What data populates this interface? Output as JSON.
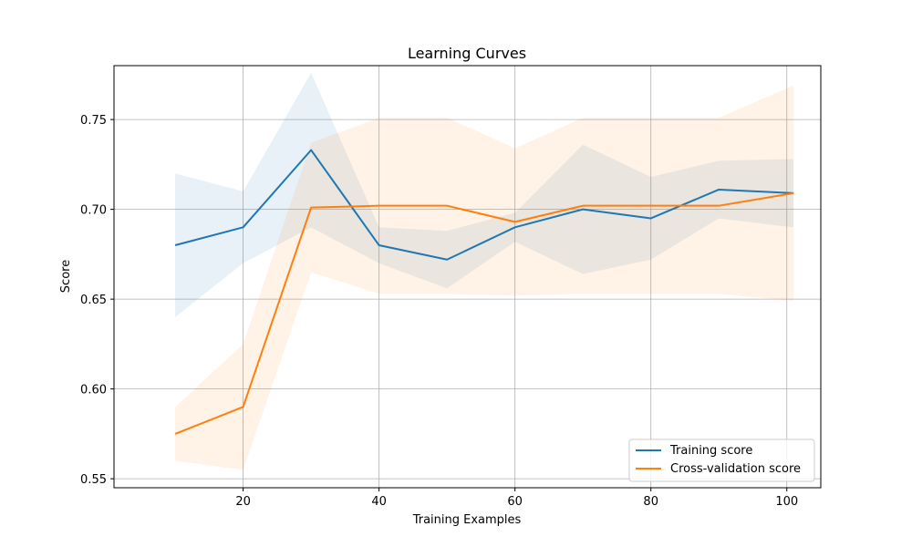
{
  "chart_data": {
    "type": "line",
    "title": "Learning Curves",
    "xlabel": "Training Examples",
    "ylabel": "Score",
    "xlim": [
      1,
      105
    ],
    "ylim": [
      0.545,
      0.78
    ],
    "xticks": [
      20,
      40,
      60,
      80,
      100
    ],
    "yticks": [
      0.55,
      0.6,
      0.65,
      0.7,
      0.75
    ],
    "grid": true,
    "legend_position": "lower-right",
    "series": [
      {
        "name": "Training score",
        "color": "#1f77b4",
        "x": [
          10,
          20,
          30,
          40,
          50,
          60,
          70,
          80,
          90,
          101
        ],
        "mean": [
          0.68,
          0.69,
          0.733,
          0.68,
          0.672,
          0.69,
          0.7,
          0.695,
          0.711,
          0.709
        ],
        "lower": [
          0.64,
          0.67,
          0.69,
          0.67,
          0.656,
          0.682,
          0.664,
          0.672,
          0.695,
          0.69
        ],
        "upper": [
          0.72,
          0.71,
          0.776,
          0.69,
          0.688,
          0.698,
          0.736,
          0.718,
          0.727,
          0.728
        ]
      },
      {
        "name": "Cross-validation score",
        "color": "#ff7f0e",
        "x": [
          10,
          20,
          30,
          40,
          50,
          60,
          70,
          80,
          90,
          101
        ],
        "mean": [
          0.575,
          0.59,
          0.701,
          0.702,
          0.702,
          0.693,
          0.702,
          0.702,
          0.702,
          0.709
        ],
        "lower": [
          0.56,
          0.555,
          0.665,
          0.653,
          0.653,
          0.652,
          0.653,
          0.653,
          0.653,
          0.649
        ],
        "upper": [
          0.59,
          0.625,
          0.737,
          0.751,
          0.751,
          0.734,
          0.751,
          0.751,
          0.751,
          0.769
        ]
      }
    ]
  }
}
